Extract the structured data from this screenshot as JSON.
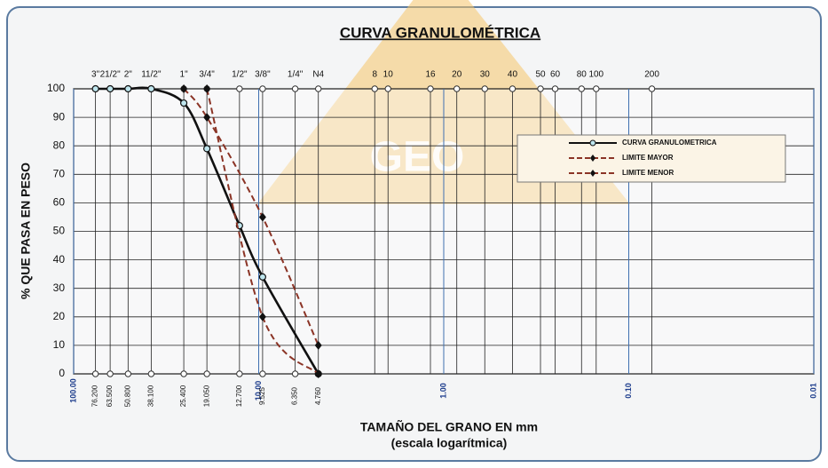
{
  "chart_data": {
    "type": "line",
    "title": "CURVA GRANULOMÉTRICA",
    "watermark": "GEO",
    "ylabel": "% QUE PASA EN PESO",
    "xlabel": "TAMAÑO DEL GRANO EN mm",
    "xlabel_note": "(escala logarítmica)",
    "log_x": true,
    "grid": true,
    "legend": "upper right",
    "xlim": [
      100,
      0.01
    ],
    "xticks": [
      {
        "value": 100,
        "label": "100.00"
      },
      {
        "value": 10,
        "label": "10.00"
      },
      {
        "value": 1,
        "label": "1.00"
      },
      {
        "value": 0.1,
        "label": "0.10"
      },
      {
        "value": 0.01,
        "label": "0.01"
      }
    ],
    "ylim": [
      0,
      100
    ],
    "yticks": [
      0,
      10,
      20,
      30,
      40,
      50,
      60,
      70,
      80,
      90,
      100
    ],
    "sieves": [
      {
        "name": "3\"",
        "mm": 76.2,
        "mm_label": "76.200"
      },
      {
        "name": "21/2\"",
        "mm": 63.5,
        "mm_label": "63.500"
      },
      {
        "name": "2\"",
        "mm": 50.8,
        "mm_label": "50.800"
      },
      {
        "name": "11/2\"",
        "mm": 38.1,
        "mm_label": "38.100"
      },
      {
        "name": "1\"",
        "mm": 25.4,
        "mm_label": "25.400"
      },
      {
        "name": "3/4\"",
        "mm": 19.05,
        "mm_label": "19.050"
      },
      {
        "name": "1/2\"",
        "mm": 12.7,
        "mm_label": "12.700"
      },
      {
        "name": "3/8\"",
        "mm": 9.525,
        "mm_label": "9.525"
      },
      {
        "name": "1/4\"",
        "mm": 6.35,
        "mm_label": "6.350"
      },
      {
        "name": "N4",
        "mm": 4.76,
        "mm_label": "4.760"
      },
      {
        "name": "8",
        "mm": 2.36
      },
      {
        "name": "10",
        "mm": 2.0
      },
      {
        "name": "16",
        "mm": 1.18
      },
      {
        "name": "20",
        "mm": 0.85
      },
      {
        "name": "30",
        "mm": 0.6
      },
      {
        "name": "40",
        "mm": 0.425
      },
      {
        "name": "50",
        "mm": 0.3
      },
      {
        "name": "60",
        "mm": 0.25
      },
      {
        "name": "80",
        "mm": 0.18
      },
      {
        "name": "100",
        "mm": 0.15
      },
      {
        "name": "200",
        "mm": 0.075
      }
    ],
    "series": [
      {
        "name": "CURVA GRANULOMETRICA",
        "color": "#111111",
        "dashed": false,
        "marker": "circle",
        "x": [
          76.2,
          63.5,
          50.8,
          38.1,
          25.4,
          19.05,
          12.7,
          9.525,
          4.76
        ],
        "values": [
          100,
          100,
          100,
          100,
          95,
          79,
          52,
          34,
          0
        ]
      },
      {
        "name": "LIMITE MAYOR",
        "color": "#8b3426",
        "dashed": true,
        "marker": "diamond",
        "x": [
          25.4,
          19.05,
          9.525,
          4.76
        ],
        "values": [
          100,
          90,
          55,
          10
        ]
      },
      {
        "name": "LIMITE MENOR",
        "color": "#8b3426",
        "dashed": true,
        "marker": "diamond",
        "x": [
          19.05,
          9.525,
          4.76
        ],
        "values": [
          100,
          20,
          0
        ]
      }
    ]
  }
}
